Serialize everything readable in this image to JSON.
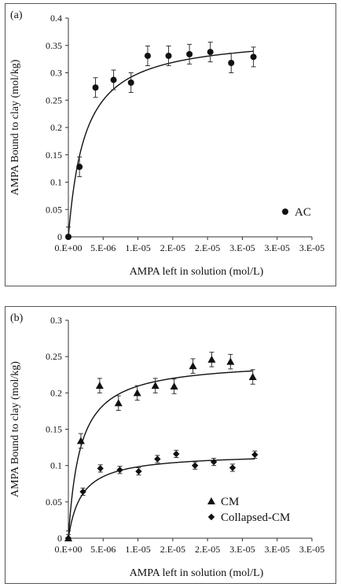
{
  "chart_data": [
    {
      "type": "scatter",
      "panel_label": "(a)",
      "xlabel": "AMPA left in solution (mol/L)",
      "ylabel": "AMPA Bound to clay (mol/kg)",
      "xlim": [
        0,
        3.5e-05
      ],
      "ylim": [
        0,
        0.4
      ],
      "xticks": [
        0,
        5e-06,
        1e-05,
        1.5e-05,
        2e-05,
        2.5e-05,
        3e-05,
        3.5e-05
      ],
      "xtick_labels": [
        "0.E+00",
        "5.E-06",
        "1.E-05",
        "2.E-05",
        "2.E-05",
        "3.E-05",
        "3.E-05",
        "3.E-05"
      ],
      "yticks": [
        0,
        0.05,
        0.1,
        0.15,
        0.2,
        0.25,
        0.3,
        0.35,
        0.4
      ],
      "ytick_labels": [
        "0",
        "0.05",
        "0.1",
        "0.15",
        "0.2",
        "0.25",
        "0.3",
        "0.35",
        "0.4"
      ],
      "legend_position": "bottom-right",
      "series": [
        {
          "name": "AC",
          "marker": "circle",
          "x": [
            0,
            1.6e-06,
            3.9e-06,
            6.5e-06,
            9e-06,
            1.14e-05,
            1.44e-05,
            1.74e-05,
            2.04e-05,
            2.34e-05,
            2.66e-05
          ],
          "y": [
            0,
            0.128,
            0.273,
            0.287,
            0.282,
            0.331,
            0.331,
            0.334,
            0.338,
            0.318,
            0.329
          ],
          "err": [
            0.018,
            0.018,
            0.018,
            0.018,
            0.018,
            0.018,
            0.018,
            0.018,
            0.018,
            0.018,
            0.018
          ],
          "fit": {
            "qmax": 0.37,
            "k": 2.4e-06
          }
        }
      ]
    },
    {
      "type": "scatter",
      "panel_label": "(b)",
      "xlabel": "AMPA left in solution (mol/L)",
      "ylabel": "AMPA Bound to clay (mol/kg)",
      "xlim": [
        0,
        3.5e-05
      ],
      "ylim": [
        0,
        0.3
      ],
      "xticks": [
        0,
        5e-06,
        1e-05,
        1.5e-05,
        2e-05,
        2.5e-05,
        3e-05,
        3.5e-05
      ],
      "xtick_labels": [
        "0.E+00",
        "5.E-06",
        "1.E-05",
        "2.E-05",
        "2.E-05",
        "3.E-05",
        "3.E-05",
        "3.E-05"
      ],
      "yticks": [
        0,
        0.05,
        0.1,
        0.15,
        0.2,
        0.25,
        0.3
      ],
      "ytick_labels": [
        "0",
        "0.05",
        "0.1",
        "0.15",
        "0.2",
        "0.25",
        "0.3"
      ],
      "legend_position": "bottom-right",
      "series": [
        {
          "name": "CM",
          "marker": "triangle",
          "x": [
            0,
            1.8e-06,
            4.5e-06,
            7.2e-06,
            9.9e-06,
            1.25e-05,
            1.52e-05,
            1.79e-05,
            2.06e-05,
            2.33e-05,
            2.65e-05
          ],
          "y": [
            0,
            0.134,
            0.21,
            0.186,
            0.2,
            0.21,
            0.209,
            0.237,
            0.246,
            0.243,
            0.222
          ],
          "err": [
            0.01,
            0.01,
            0.01,
            0.01,
            0.01,
            0.01,
            0.01,
            0.01,
            0.01,
            0.01,
            0.01
          ],
          "fit": {
            "qmax": 0.245,
            "k": 1.7e-06
          }
        },
        {
          "name": "Collapsed-CM",
          "marker": "diamond",
          "x": [
            0,
            2.1e-06,
            4.6e-06,
            7.4e-06,
            1.01e-05,
            1.28e-05,
            1.55e-05,
            1.82e-05,
            2.09e-05,
            2.36e-05,
            2.68e-05
          ],
          "y": [
            0,
            0.064,
            0.096,
            0.094,
            0.092,
            0.109,
            0.116,
            0.1,
            0.105,
            0.097,
            0.115
          ],
          "err": [
            0.005,
            0.005,
            0.005,
            0.005,
            0.005,
            0.005,
            0.005,
            0.005,
            0.005,
            0.005,
            0.005
          ],
          "fit": {
            "qmax": 0.117,
            "k": 1.9e-06
          }
        }
      ]
    }
  ]
}
